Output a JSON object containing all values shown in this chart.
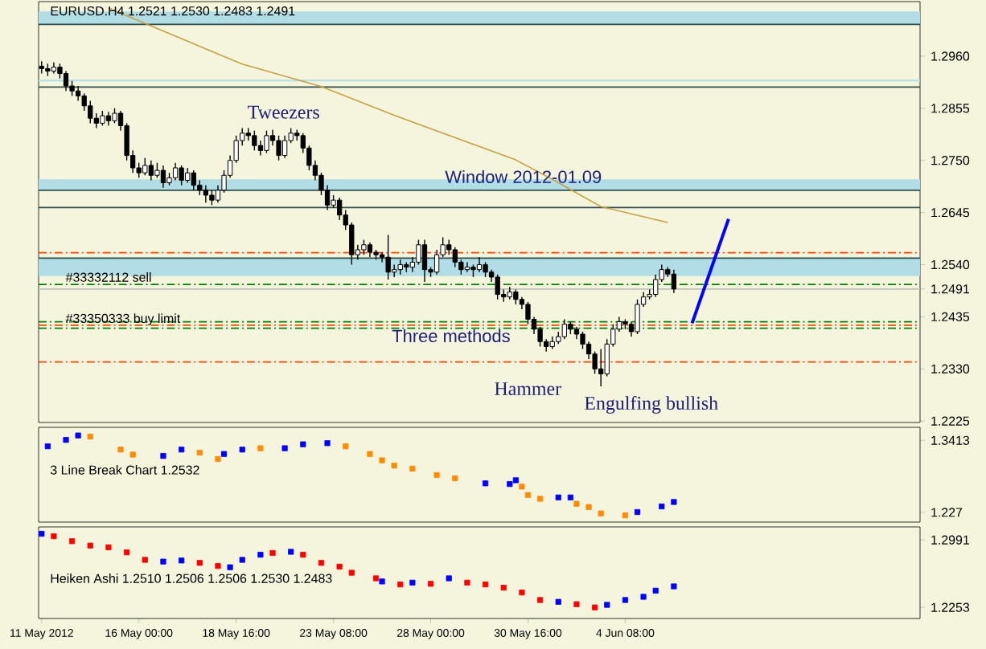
{
  "chart_data": [
    {
      "type": "candlestick",
      "title": "EURUSD.H4  1.2521 1.2530 1.2483 1.2491",
      "tick_labels": "y",
      "categories": [
        null,
        null,
        null,
        null,
        null,
        null,
        null,
        null,
        null,
        null,
        null,
        null,
        null,
        null,
        null,
        null,
        null,
        null,
        null,
        null,
        null,
        null,
        null,
        null,
        null,
        null,
        null,
        null,
        null,
        null,
        null,
        null,
        null,
        null,
        null,
        null,
        null,
        null,
        null,
        null,
        null,
        null,
        null,
        null,
        null,
        null,
        null,
        null,
        null,
        null,
        null,
        null,
        null,
        null,
        null,
        null,
        null,
        null,
        null,
        null,
        null,
        null,
        null,
        null,
        null,
        null,
        null,
        null,
        null,
        null,
        null,
        null,
        null,
        null,
        null,
        null,
        null,
        null,
        null,
        null,
        null,
        null,
        null,
        null,
        null,
        null,
        null,
        null,
        null,
        null,
        null,
        null,
        null,
        null,
        null,
        null,
        null,
        null,
        null,
        null,
        null,
        null,
        null,
        null,
        null,
        null,
        null,
        null,
        null,
        null,
        null,
        null,
        null,
        null,
        null,
        null,
        null,
        null,
        null,
        null,
        null,
        null,
        null,
        null,
        null,
        null,
        null,
        null,
        null,
        null,
        null,
        null,
        null,
        null,
        null,
        null,
        null,
        null,
        null,
        null,
        null,
        null,
        null,
        null,
        null
      ],
      "ohlc": [
        [
          1.294,
          1.295,
          1.2925,
          1.2935
        ],
        [
          1.2935,
          1.2945,
          1.292,
          1.293
        ],
        [
          1.293,
          1.2948,
          1.2925,
          1.2938
        ],
        [
          1.2938,
          1.2945,
          1.2915,
          1.2925
        ],
        [
          1.2925,
          1.293,
          1.289,
          1.29
        ],
        [
          1.29,
          1.291,
          1.288,
          1.289
        ],
        [
          1.289,
          1.29,
          1.287,
          1.288
        ],
        [
          1.288,
          1.2885,
          1.285,
          1.286
        ],
        [
          1.286,
          1.287,
          1.2825,
          1.2835
        ],
        [
          1.2835,
          1.2845,
          1.2815,
          1.2825
        ],
        [
          1.2825,
          1.285,
          1.282,
          1.284
        ],
        [
          1.284,
          1.2848,
          1.282,
          1.283
        ],
        [
          1.283,
          1.2855,
          1.2825,
          1.2845
        ],
        [
          1.2845,
          1.285,
          1.281,
          1.282
        ],
        [
          1.282,
          1.2825,
          1.275,
          1.276
        ],
        [
          1.276,
          1.277,
          1.2725,
          1.2735
        ],
        [
          1.2735,
          1.2745,
          1.2715,
          1.2725
        ],
        [
          1.2725,
          1.2755,
          1.272,
          1.274
        ],
        [
          1.274,
          1.275,
          1.271,
          1.272
        ],
        [
          1.272,
          1.2745,
          1.2715,
          1.273
        ],
        [
          1.273,
          1.274,
          1.2695,
          1.2705
        ],
        [
          1.2705,
          1.2725,
          1.27,
          1.2715
        ],
        [
          1.2715,
          1.2745,
          1.271,
          1.2735
        ],
        [
          1.2735,
          1.274,
          1.27,
          1.271
        ],
        [
          1.271,
          1.2735,
          1.2705,
          1.2725
        ],
        [
          1.2725,
          1.273,
          1.269,
          1.27
        ],
        [
          1.27,
          1.271,
          1.268,
          1.269
        ],
        [
          1.269,
          1.27,
          1.2665,
          1.268
        ],
        [
          1.268,
          1.269,
          1.266,
          1.267
        ],
        [
          1.267,
          1.27,
          1.2665,
          1.269
        ],
        [
          1.269,
          1.273,
          1.2685,
          1.272
        ],
        [
          1.272,
          1.276,
          1.2715,
          1.275
        ],
        [
          1.275,
          1.28,
          1.2745,
          1.279
        ],
        [
          1.279,
          1.2815,
          1.278,
          1.2805
        ],
        [
          1.2805,
          1.2815,
          1.279,
          1.28
        ],
        [
          1.28,
          1.281,
          1.277,
          1.278
        ],
        [
          1.278,
          1.279,
          1.276,
          1.277
        ],
        [
          1.277,
          1.281,
          1.2765,
          1.28
        ],
        [
          1.28,
          1.2812,
          1.278,
          1.279
        ],
        [
          1.279,
          1.28,
          1.275,
          1.276
        ],
        [
          1.276,
          1.28,
          1.2755,
          1.279
        ],
        [
          1.279,
          1.2815,
          1.2785,
          1.2805
        ],
        [
          1.2805,
          1.2812,
          1.279,
          1.28
        ],
        [
          1.28,
          1.2805,
          1.2765,
          1.2775
        ],
        [
          1.2775,
          1.278,
          1.273,
          1.274
        ],
        [
          1.274,
          1.275,
          1.271,
          1.272
        ],
        [
          1.272,
          1.2725,
          1.268,
          1.269
        ],
        [
          1.269,
          1.27,
          1.265,
          1.266
        ],
        [
          1.266,
          1.268,
          1.2655,
          1.267
        ],
        [
          1.267,
          1.2675,
          1.263,
          1.264
        ],
        [
          1.264,
          1.265,
          1.261,
          1.262
        ],
        [
          1.262,
          1.2625,
          1.254,
          1.256
        ],
        [
          1.256,
          1.258,
          1.255,
          1.257
        ],
        [
          1.257,
          1.259,
          1.256,
          1.258
        ],
        [
          1.258,
          1.2585,
          1.2555,
          1.2565
        ],
        [
          1.2565,
          1.257,
          1.255,
          1.256
        ],
        [
          1.256,
          1.2565,
          1.2545,
          1.2555
        ],
        [
          1.2555,
          1.26,
          1.251,
          1.2525
        ],
        [
          1.2525,
          1.254,
          1.2515,
          1.253
        ],
        [
          1.253,
          1.255,
          1.252,
          1.254
        ],
        [
          1.254,
          1.2545,
          1.2525,
          1.2535
        ],
        [
          1.2535,
          1.2555,
          1.2525,
          1.2545
        ],
        [
          1.2545,
          1.259,
          1.254,
          1.258
        ],
        [
          1.258,
          1.259,
          1.2505,
          1.253
        ],
        [
          1.253,
          1.2535,
          1.2515,
          1.2525
        ],
        [
          1.2525,
          1.257,
          1.252,
          1.256
        ],
        [
          1.256,
          1.2595,
          1.2555,
          1.258
        ],
        [
          1.258,
          1.259,
          1.256,
          1.257
        ],
        [
          1.257,
          1.2575,
          1.2535,
          1.2545
        ],
        [
          1.2545,
          1.255,
          1.252,
          1.253
        ],
        [
          1.253,
          1.2545,
          1.2525,
          1.2535
        ],
        [
          1.2535,
          1.254,
          1.2515,
          1.253
        ],
        [
          1.253,
          1.2555,
          1.2525,
          1.254
        ],
        [
          1.254,
          1.2545,
          1.2515,
          1.2525
        ],
        [
          1.2525,
          1.253,
          1.2505,
          1.2515
        ],
        [
          1.2515,
          1.252,
          1.247,
          1.248
        ],
        [
          1.248,
          1.249,
          1.2465,
          1.2475
        ],
        [
          1.2475,
          1.2495,
          1.247,
          1.2485
        ],
        [
          1.2485,
          1.249,
          1.246,
          1.247
        ],
        [
          1.247,
          1.2475,
          1.245,
          1.246
        ],
        [
          1.246,
          1.2465,
          1.242,
          1.243
        ],
        [
          1.243,
          1.2435,
          1.24,
          1.241
        ],
        [
          1.241,
          1.2415,
          1.2375,
          1.2385
        ],
        [
          1.2385,
          1.239,
          1.2365,
          1.2375
        ],
        [
          1.2375,
          1.2395,
          1.237,
          1.2385
        ],
        [
          1.2385,
          1.2405,
          1.238,
          1.2395
        ],
        [
          1.2395,
          1.243,
          1.239,
          1.242
        ],
        [
          1.242,
          1.2425,
          1.24,
          1.241
        ],
        [
          1.241,
          1.2415,
          1.239,
          1.24
        ],
        [
          1.24,
          1.2405,
          1.237,
          1.238
        ],
        [
          1.238,
          1.2385,
          1.235,
          1.236
        ],
        [
          1.236,
          1.2365,
          1.232,
          1.233
        ],
        [
          1.233,
          1.237,
          1.2295,
          1.232
        ],
        [
          1.232,
          1.239,
          1.2315,
          1.238
        ],
        [
          1.238,
          1.242,
          1.2375,
          1.241
        ],
        [
          1.241,
          1.2435,
          1.2405,
          1.2425
        ],
        [
          1.2425,
          1.243,
          1.241,
          1.242
        ],
        [
          1.242,
          1.2425,
          1.2395,
          1.2405
        ],
        [
          1.2405,
          1.247,
          1.24,
          1.246
        ],
        [
          1.246,
          1.2485,
          1.2455,
          1.2475
        ],
        [
          1.2475,
          1.249,
          1.247,
          1.248
        ],
        [
          1.248,
          1.252,
          1.2475,
          1.251
        ],
        [
          1.251,
          1.254,
          1.2505,
          1.253
        ],
        [
          1.253,
          1.2535,
          1.2515,
          1.2521
        ],
        [
          1.2521,
          1.253,
          1.2483,
          1.2491
        ],
        null,
        null,
        null,
        null,
        null,
        null,
        null,
        null,
        null,
        null,
        null,
        null,
        null,
        null,
        null,
        null,
        null,
        null,
        null,
        null,
        null,
        null,
        null,
        null,
        null,
        null,
        null,
        null,
        null,
        null,
        null,
        null,
        null,
        null,
        null,
        null,
        null,
        null,
        null,
        null
      ],
      "series": [
        {
          "type": "line",
          "color": "#c8a040",
          "values": [
            null,
            null,
            null,
            null,
            null,
            null,
            null,
            null,
            null,
            null,
            null,
            1.3057,
            null,
            null,
            null,
            null,
            null,
            null,
            null,
            null,
            null,
            null,
            null,
            null,
            null,
            null,
            null,
            null,
            null,
            null,
            null,
            null,
            null,
            1.2944,
            null,
            null,
            null,
            null,
            null,
            null,
            null,
            null,
            null,
            null,
            null,
            null,
            1.2899,
            null,
            null,
            null,
            null,
            null,
            null,
            null,
            null,
            null,
            null,
            null,
            1.2841,
            null,
            null,
            null,
            null,
            null,
            null,
            null,
            null,
            null,
            null,
            null,
            null,
            null,
            null,
            null,
            null,
            null,
            null,
            null,
            1.2751,
            null,
            null,
            null,
            null,
            null,
            1.2712,
            null,
            null,
            null,
            null,
            null,
            null,
            null,
            1.2657,
            null,
            null,
            null,
            null,
            null,
            null,
            null,
            null,
            null,
            null,
            1.2625,
            null,
            null,
            null,
            null,
            null,
            null,
            null,
            null,
            null,
            null,
            null,
            null,
            null,
            null,
            null,
            null,
            null,
            null,
            null,
            null,
            null,
            null,
            null,
            null,
            null,
            null,
            null,
            null,
            null,
            null,
            null,
            null,
            null,
            null,
            null,
            null,
            null,
            null,
            null,
            null,
            null
          ]
        },
        {
          "type": "line",
          "color": "#0000ff",
          "values": [
            null,
            null,
            null,
            null,
            null,
            null,
            null,
            null,
            null,
            null,
            null,
            null,
            null,
            null,
            null,
            null,
            null,
            null,
            null,
            null,
            null,
            null,
            null,
            null,
            null,
            null,
            null,
            null,
            null,
            null,
            null,
            null,
            null,
            null,
            null,
            null,
            null,
            null,
            null,
            null,
            null,
            null,
            null,
            null,
            null,
            null,
            null,
            null,
            null,
            null,
            null,
            null,
            null,
            null,
            null,
            null,
            null,
            null,
            null,
            null,
            null,
            null,
            null,
            null,
            null,
            null,
            null,
            null,
            null,
            null,
            null,
            null,
            null,
            null,
            null,
            null,
            null,
            null,
            null,
            null,
            null,
            null,
            null,
            null,
            null,
            null,
            null,
            null,
            null,
            null,
            null,
            null,
            null,
            null,
            null,
            null,
            null,
            null,
            null,
            null,
            null,
            null,
            null,
            null,
            null,
            null,
            null,
            1.2422,
            null,
            null,
            null,
            null,
            null,
            1.2632,
            null,
            null,
            null,
            null,
            null,
            null,
            null,
            null,
            null,
            null,
            null,
            null,
            null,
            null,
            null,
            null,
            null,
            null,
            null,
            null,
            null,
            null,
            null,
            null,
            null,
            null,
            null,
            null,
            null,
            null,
            null
          ]
        }
      ],
      "ylim": [
        1.2222,
        1.307
      ],
      "yticks": [
        {
          "value": 1.296,
          "label": "1.2960"
        },
        {
          "value": 1.2855,
          "label": "1.2855"
        },
        {
          "value": 1.275,
          "label": "1.2750"
        },
        {
          "value": 1.2645,
          "label": "1.2645"
        },
        {
          "value": 1.254,
          "label": "1.2540"
        },
        {
          "value": 1.2491,
          "label": "1.2491"
        },
        {
          "value": 1.2435,
          "label": "1.2435"
        },
        {
          "value": 1.233,
          "label": "1.2330"
        },
        {
          "value": 1.2225,
          "label": "1.2225"
        }
      ],
      "bands": [
        {
          "axis": "y",
          "from": 1.3024,
          "to": 1.305,
          "color": "#b0dde6"
        },
        {
          "axis": "y",
          "from": 1.269,
          "to": 1.2712,
          "color": "#b0dde6"
        },
        {
          "axis": "y",
          "from": 1.2517,
          "to": 1.2553,
          "color": "#b0dde6"
        }
      ],
      "ref_lines": [
        {
          "axis": "y",
          "value": 1.3024,
          "color": "#2f4f4f",
          "line_style": "solid"
        },
        {
          "axis": "y",
          "value": 1.2911,
          "color": "#b0dde6",
          "line_style": "solid"
        },
        {
          "axis": "y",
          "value": 1.2898,
          "color": "#2f4f4f",
          "line_style": "solid"
        },
        {
          "axis": "y",
          "value": 1.269,
          "color": "#2f4f4f",
          "line_style": "solid"
        },
        {
          "axis": "y",
          "value": 1.2655,
          "color": "#2f4f4f",
          "line_style": "solid"
        },
        {
          "axis": "y",
          "value": 1.2553,
          "color": "#2f4f4f",
          "line_style": "solid"
        },
        {
          "axis": "y",
          "value": 1.2564,
          "color": "#ff4500",
          "line_style": "dashdot"
        },
        {
          "axis": "y",
          "value": 1.25,
          "color": "#008000",
          "line_style": "dashdot",
          "label": "#33332112 sell"
        },
        {
          "axis": "y",
          "value": 1.2491,
          "color": "#c0c0c0",
          "line_style": "solid"
        },
        {
          "axis": "y",
          "value": 1.2425,
          "color": "#008000",
          "line_style": "dashdot"
        },
        {
          "axis": "y",
          "value": 1.2418,
          "color": "#ff4500",
          "line_style": "dashdot"
        },
        {
          "axis": "y",
          "value": 1.2412,
          "color": "#008000",
          "line_style": "dashdot",
          "label": "#33350333 buy limit"
        },
        {
          "axis": "y",
          "value": 1.2344,
          "color": "#ff4500",
          "line_style": "dashdot"
        }
      ],
      "annotations": [
        "Tweezers",
        "Window 2012-01.09",
        "Three methods",
        "Hammer",
        "Engulfing bullish"
      ]
    },
    {
      "type": "scatter",
      "title": "3 Line Break Chart 1.2532",
      "tick_labels": "y",
      "marker": "square",
      "categories": [
        null,
        null,
        null,
        null,
        null,
        null,
        null,
        null,
        null,
        null,
        null,
        null,
        null,
        null,
        null,
        null,
        null,
        null,
        null,
        null,
        null,
        null,
        null,
        null,
        null,
        null,
        null,
        null,
        null,
        null,
        null,
        null,
        null,
        null,
        null,
        null,
        null,
        null,
        null,
        null,
        null,
        null,
        null,
        null,
        null,
        null,
        null,
        null,
        null,
        null,
        null,
        null,
        null,
        null,
        null,
        null,
        null,
        null,
        null,
        null,
        null,
        null,
        null,
        null,
        null,
        null,
        null,
        null,
        null,
        null,
        null,
        null,
        null,
        null,
        null,
        null,
        null,
        null,
        null,
        null,
        null,
        null,
        null,
        null,
        null,
        null,
        null,
        null,
        null,
        null,
        null,
        null,
        null,
        null,
        null,
        null,
        null,
        null,
        null,
        null,
        null,
        null,
        null,
        null,
        null,
        null,
        null,
        null,
        null,
        null,
        null,
        null,
        null,
        null,
        null,
        null,
        null,
        null,
        null,
        null,
        null,
        null,
        null,
        null,
        null,
        null,
        null,
        null,
        null,
        null,
        null,
        null,
        null,
        null,
        null,
        null,
        null,
        null,
        null,
        null,
        null,
        null,
        null,
        null,
        null
      ],
      "values": [
        null,
        1.3319,
        null,
        null,
        1.3421,
        null,
        1.3491,
        null,
        1.3473,
        null,
        null,
        null,
        null,
        1.3267,
        null,
        1.3187,
        null,
        null,
        null,
        null,
        1.3166,
        null,
        null,
        1.3267,
        null,
        null,
        1.3218,
        null,
        null,
        1.3117,
        1.3197,
        null,
        null,
        1.3267,
        null,
        null,
        1.3288,
        null,
        null,
        null,
        1.3288,
        null,
        null,
        1.3351,
        null,
        null,
        null,
        1.3369,
        null,
        null,
        1.3319,
        null,
        null,
        null,
        1.3197,
        null,
        1.3096,
        null,
        1.3013,
        null,
        null,
        1.2963,
        null,
        null,
        null,
        1.2862,
        null,
        null,
        1.281,
        null,
        null,
        null,
        null,
        1.273,
        null,
        null,
        null,
        1.2719,
        1.2779,
        1.2678,
        1.2545,
        null,
        1.2485,
        null,
        null,
        1.2506,
        null,
        1.2506,
        1.2405,
        null,
        1.2353,
        null,
        1.2252,
        null,
        null,
        null,
        1.2221,
        null,
        1.2273,
        null,
        null,
        null,
        1.2363,
        null,
        1.2434,
        null,
        null,
        null,
        null,
        null,
        null,
        null,
        null,
        null,
        null,
        null,
        null,
        null,
        null,
        null,
        null,
        null,
        null,
        null,
        null,
        null,
        null,
        null,
        null,
        null,
        null,
        null,
        null,
        null,
        null,
        null,
        null,
        null,
        null,
        null,
        null,
        null,
        null,
        null,
        null
      ],
      "colors": [
        null,
        "#0000ff",
        null,
        null,
        "#0000ff",
        null,
        "#0000ff",
        null,
        "#ff8c00",
        null,
        null,
        null,
        null,
        "#ff8c00",
        null,
        "#ff8c00",
        null,
        null,
        null,
        null,
        "#0000ff",
        null,
        null,
        "#0000ff",
        null,
        null,
        "#ff8c00",
        null,
        null,
        "#ff8c00",
        "#0000ff",
        null,
        null,
        "#0000ff",
        null,
        null,
        "#ff8c00",
        null,
        null,
        null,
        "#0000ff",
        null,
        null,
        "#0000ff",
        null,
        null,
        null,
        "#0000ff",
        null,
        null,
        "#ff8c00",
        null,
        null,
        null,
        "#ff8c00",
        null,
        "#ff8c00",
        null,
        "#ff8c00",
        null,
        null,
        "#ff8c00",
        null,
        null,
        null,
        "#ff8c00",
        null,
        null,
        "#ff8c00",
        null,
        null,
        null,
        null,
        "#0000ff",
        null,
        null,
        null,
        "#0000ff",
        "#0000ff",
        "#ff8c00",
        "#ff8c00",
        null,
        "#ff8c00",
        null,
        null,
        "#0000ff",
        null,
        "#0000ff",
        "#ff8c00",
        null,
        "#ff8c00",
        null,
        "#ff8c00",
        null,
        null,
        null,
        "#ff8c00",
        null,
        "#0000ff",
        null,
        null,
        null,
        "#0000ff",
        null,
        "#0000ff",
        null,
        null,
        null,
        null,
        null,
        null,
        null,
        null,
        null,
        null,
        null,
        null,
        null,
        null,
        null,
        null,
        null,
        null,
        null,
        null,
        null,
        null,
        null,
        null,
        null,
        null,
        null,
        null,
        null,
        null,
        null,
        null,
        null,
        null,
        null,
        null,
        null,
        null,
        null,
        null
      ],
      "ylim": [
        1.2114,
        1.3621
      ],
      "yticks": [
        1.3413,
        1.227
      ]
    },
    {
      "type": "scatter",
      "title": "Heiken Ashi 1.2510 1.2506 1.2506 1.2530 1.2483",
      "marker": "square",
      "categories": [
        "11 May 2012",
        null,
        null,
        null,
        null,
        null,
        null,
        null,
        null,
        null,
        null,
        null,
        null,
        null,
        null,
        null,
        "16 May 00:00",
        null,
        null,
        null,
        null,
        null,
        null,
        null,
        null,
        null,
        null,
        null,
        null,
        null,
        null,
        null,
        "18 May 16:00",
        null,
        null,
        null,
        null,
        null,
        null,
        null,
        null,
        null,
        null,
        null,
        null,
        null,
        null,
        null,
        "23 May 08:00",
        null,
        null,
        null,
        null,
        null,
        null,
        null,
        null,
        null,
        null,
        null,
        null,
        null,
        null,
        null,
        "28 May 00:00",
        null,
        null,
        null,
        null,
        null,
        null,
        null,
        null,
        null,
        null,
        null,
        null,
        null,
        null,
        null,
        "30 May 16:00",
        null,
        null,
        null,
        null,
        null,
        null,
        null,
        null,
        null,
        null,
        null,
        null,
        null,
        null,
        null,
        "4 Jun 08:00",
        null,
        null,
        null,
        null,
        null,
        null,
        null,
        null,
        null,
        null,
        null,
        null,
        null,
        null,
        null,
        null,
        null,
        null,
        null,
        null,
        null,
        null,
        null,
        null,
        null,
        null,
        null,
        null,
        null,
        null,
        null,
        null,
        null,
        null,
        null,
        null,
        null,
        null,
        null,
        null,
        null,
        null,
        null,
        null,
        null,
        null,
        null,
        null
      ],
      "values": [
        1.3058,
        null,
        1.3031,
        null,
        null,
        1.2977,
        null,
        null,
        1.2929,
        null,
        null,
        1.291,
        null,
        null,
        1.2855,
        null,
        null,
        1.2773,
        null,
        null,
        1.2754,
        null,
        null,
        1.2766,
        null,
        null,
        1.274,
        null,
        null,
        1.2706,
        null,
        1.2692,
        null,
        1.2773,
        null,
        null,
        1.2829,
        null,
        1.2848,
        null,
        null,
        1.2861,
        null,
        1.2829,
        null,
        null,
        1.274,
        null,
        null,
        1.2699,
        null,
        1.2632,
        null,
        null,
        null,
        1.2571,
        1.2537,
        null,
        null,
        1.2504,
        null,
        1.2524,
        null,
        null,
        1.2511,
        null,
        null,
        1.2571,
        null,
        null,
        1.2524,
        null,
        null,
        1.2504,
        null,
        null,
        1.2469,
        null,
        null,
        1.2416,
        null,
        null,
        1.2334,
        null,
        null,
        1.2314,
        null,
        null,
        1.2288,
        null,
        null,
        1.2253,
        null,
        1.2281,
        null,
        null,
        1.2334,
        null,
        null,
        1.2369,
        null,
        1.2436,
        null,
        null,
        1.2483,
        null,
        null,
        null,
        null,
        null,
        null,
        null,
        null,
        null,
        null,
        null,
        null,
        null,
        null,
        null,
        null,
        null,
        null,
        null,
        null,
        null,
        null,
        null,
        null,
        null,
        null,
        null,
        null,
        null,
        null,
        null,
        null,
        null,
        null,
        null,
        null,
        null,
        null,
        null,
        null
      ],
      "colors": [
        "#0000ff",
        null,
        "#ff0000",
        null,
        null,
        "#ff0000",
        null,
        null,
        "#ff0000",
        null,
        null,
        "#ff0000",
        null,
        null,
        "#ff0000",
        null,
        null,
        "#ff0000",
        null,
        null,
        "#0000ff",
        null,
        null,
        "#0000ff",
        null,
        null,
        "#ff0000",
        null,
        null,
        "#ff0000",
        null,
        "#0000ff",
        null,
        "#0000ff",
        null,
        null,
        "#0000ff",
        null,
        "#ff0000",
        null,
        null,
        "#0000ff",
        null,
        "#ff0000",
        null,
        null,
        "#ff0000",
        null,
        null,
        "#ff0000",
        null,
        "#ff0000",
        null,
        null,
        null,
        "#ff0000",
        "#0000ff",
        null,
        null,
        "#ff0000",
        null,
        "#0000ff",
        null,
        null,
        "#ff0000",
        null,
        null,
        "#0000ff",
        null,
        null,
        "#ff0000",
        null,
        null,
        "#ff0000",
        null,
        null,
        "#ff0000",
        null,
        null,
        "#ff0000",
        null,
        null,
        "#ff0000",
        null,
        null,
        "#0000ff",
        null,
        null,
        "#ff0000",
        null,
        null,
        "#ff0000",
        null,
        "#0000ff",
        null,
        null,
        "#0000ff",
        null,
        null,
        "#0000ff",
        null,
        "#0000ff",
        null,
        null,
        "#0000ff",
        null,
        null,
        null,
        null,
        null,
        null,
        null,
        null,
        null,
        null,
        null,
        null,
        null,
        null,
        null,
        null,
        null,
        null,
        null,
        null,
        null,
        null,
        null,
        null,
        null,
        null,
        null,
        null,
        null,
        null,
        null,
        null,
        null,
        null,
        null,
        null,
        null,
        null,
        null,
        null
      ],
      "ylim": [
        1.2132,
        1.3133
      ],
      "yticks": [
        1.2991,
        1.2253
      ]
    }
  ]
}
